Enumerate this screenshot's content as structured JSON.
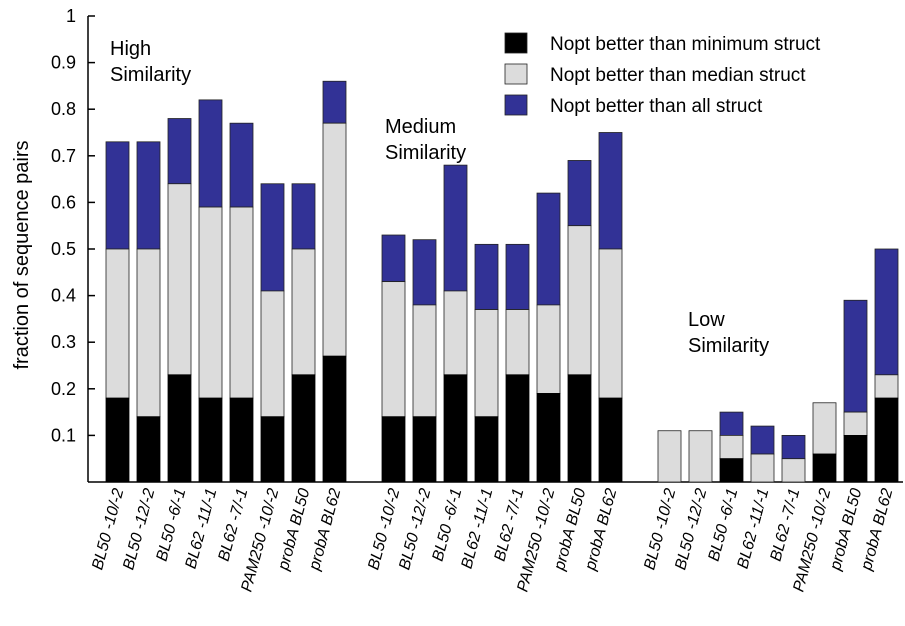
{
  "chart_data": {
    "type": "bar",
    "stacked": true,
    "ylabel": "fraction of sequence pairs",
    "ylim": [
      0,
      1
    ],
    "yticks": [
      "0.1",
      "0.2",
      "0.3",
      "0.4",
      "0.5",
      "0.6",
      "0.7",
      "0.8",
      "0.9",
      "1"
    ],
    "legend": {
      "placement": "top-right",
      "entries": [
        {
          "name": "Nopt better than minimum struct",
          "color": "#000000"
        },
        {
          "name": "Nopt better than median struct",
          "color": "#dcdcdc"
        },
        {
          "name": "Nopt better than all struct",
          "color": "#323296"
        }
      ]
    },
    "groups": [
      {
        "label_lines": [
          "High",
          "Similarity"
        ],
        "categories": [
          "BL50 -10/-2",
          "BL50 -12/-2",
          "BL50 -6/-1",
          "BL62 -11/-1",
          "BL62 -7/-1",
          "PAM250 -10/-2",
          "probA BL50",
          "probA BL62"
        ],
        "min": [
          0.18,
          0.14,
          0.23,
          0.18,
          0.18,
          0.14,
          0.23,
          0.27
        ],
        "median": [
          0.5,
          0.5,
          0.64,
          0.59,
          0.59,
          0.41,
          0.5,
          0.77
        ],
        "all": [
          0.73,
          0.73,
          0.78,
          0.82,
          0.77,
          0.64,
          0.64,
          0.86
        ]
      },
      {
        "label_lines": [
          "Medium",
          "Similarity"
        ],
        "categories": [
          "BL50 -10/-2",
          "BL50 -12/-2",
          "BL50 -6/-1",
          "BL62 -11/-1",
          "BL62 -7/-1",
          "PAM250 -10/-2",
          "probA BL50",
          "probA BL62"
        ],
        "min": [
          0.14,
          0.14,
          0.23,
          0.14,
          0.23,
          0.19,
          0.23,
          0.18
        ],
        "median": [
          0.43,
          0.38,
          0.41,
          0.37,
          0.37,
          0.38,
          0.55,
          0.5
        ],
        "all": [
          0.53,
          0.52,
          0.68,
          0.51,
          0.51,
          0.62,
          0.69,
          0.75
        ]
      },
      {
        "label_lines": [
          "Low",
          "Similarity"
        ],
        "categories": [
          "BL50 -10/-2",
          "BL50 -12/-2",
          "BL50 -6/-1",
          "BL62 -11/-1",
          "BL62 -7/-1",
          "PAM250 -10/-2",
          "probA BL50",
          "probA BL62"
        ],
        "min": [
          0.0,
          0.0,
          0.05,
          0.0,
          0.0,
          0.06,
          0.1,
          0.18
        ],
        "median": [
          0.11,
          0.11,
          0.1,
          0.06,
          0.05,
          0.17,
          0.15,
          0.23
        ],
        "all": [
          0.11,
          0.11,
          0.15,
          0.12,
          0.1,
          0.17,
          0.39,
          0.5
        ]
      }
    ]
  }
}
